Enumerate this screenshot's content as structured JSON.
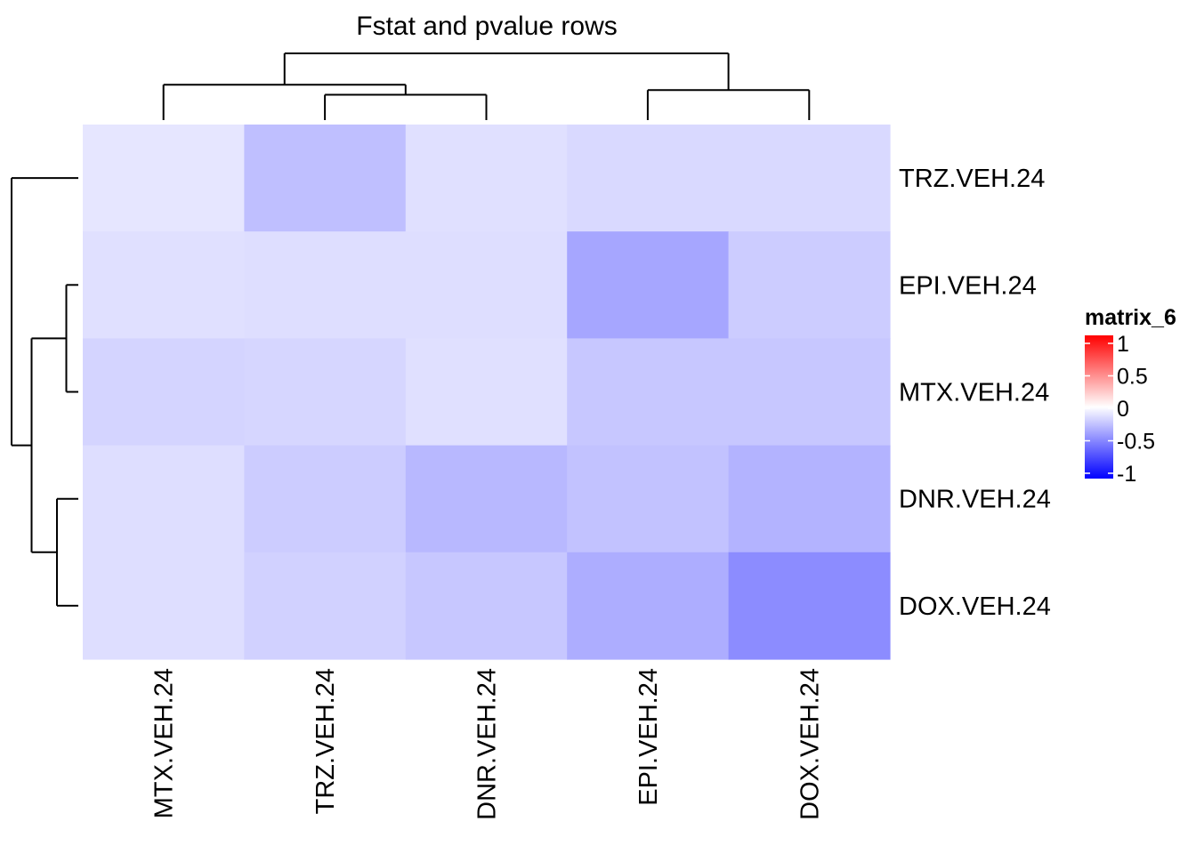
{
  "chart_data": {
    "type": "heatmap",
    "title": "Fstat and pvalue rows",
    "columns": [
      "MTX.VEH.24",
      "TRZ.VEH.24",
      "DNR.VEH.24",
      "EPI.VEH.24",
      "DOX.VEH.24"
    ],
    "rows": [
      "TRZ.VEH.24",
      "EPI.VEH.24",
      "MTX.VEH.24",
      "DNR.VEH.24",
      "DOX.VEH.24"
    ],
    "values": [
      [
        -0.1,
        -0.25,
        -0.12,
        -0.15,
        -0.15
      ],
      [
        -0.12,
        -0.13,
        -0.13,
        -0.35,
        -0.2
      ],
      [
        -0.17,
        -0.16,
        -0.12,
        -0.22,
        -0.22
      ],
      [
        -0.13,
        -0.2,
        -0.28,
        -0.24,
        -0.3
      ],
      [
        -0.13,
        -0.18,
        -0.22,
        -0.32,
        -0.45
      ]
    ],
    "legend": {
      "title": "matrix_6",
      "ticks": [
        "1",
        "0.5",
        "0",
        "-0.5",
        "-1"
      ],
      "tick_values": [
        1,
        0.5,
        0,
        -0.5,
        -1
      ],
      "colors": {
        "low": "#0000ff",
        "mid": "#ffffff",
        "high": "#ff0000"
      },
      "range": [
        -1,
        1
      ]
    },
    "column_dendrogram": {
      "order": [
        "MTX.VEH.24",
        "TRZ.VEH.24",
        "DNR.VEH.24",
        "EPI.VEH.24",
        "DOX.VEH.24"
      ],
      "merges": [
        {
          "id": "c1",
          "left": "TRZ.VEH.24",
          "right": "DNR.VEH.24",
          "height": 0.38
        },
        {
          "id": "c2",
          "left": "EPI.VEH.24",
          "right": "DOX.VEH.24",
          "height": 0.45
        },
        {
          "id": "c3",
          "left": "MTX.VEH.24",
          "right": "c1",
          "height": 0.53
        },
        {
          "id": "c4",
          "left": "c3",
          "right": "c2",
          "height": 1.0
        }
      ]
    },
    "row_dendrogram": {
      "order": [
        "TRZ.VEH.24",
        "EPI.VEH.24",
        "MTX.VEH.24",
        "DNR.VEH.24",
        "DOX.VEH.24"
      ],
      "merges": [
        {
          "id": "r1",
          "left": "EPI.VEH.24",
          "right": "MTX.VEH.24",
          "height": 0.18
        },
        {
          "id": "r2",
          "left": "DNR.VEH.24",
          "right": "DOX.VEH.24",
          "height": 0.32
        },
        {
          "id": "r3",
          "left": "r1",
          "right": "r2",
          "height": 0.7
        },
        {
          "id": "r4",
          "left": "TRZ.VEH.24",
          "right": "r3",
          "height": 1.0
        }
      ]
    },
    "grid": false,
    "legend_position": "right"
  }
}
